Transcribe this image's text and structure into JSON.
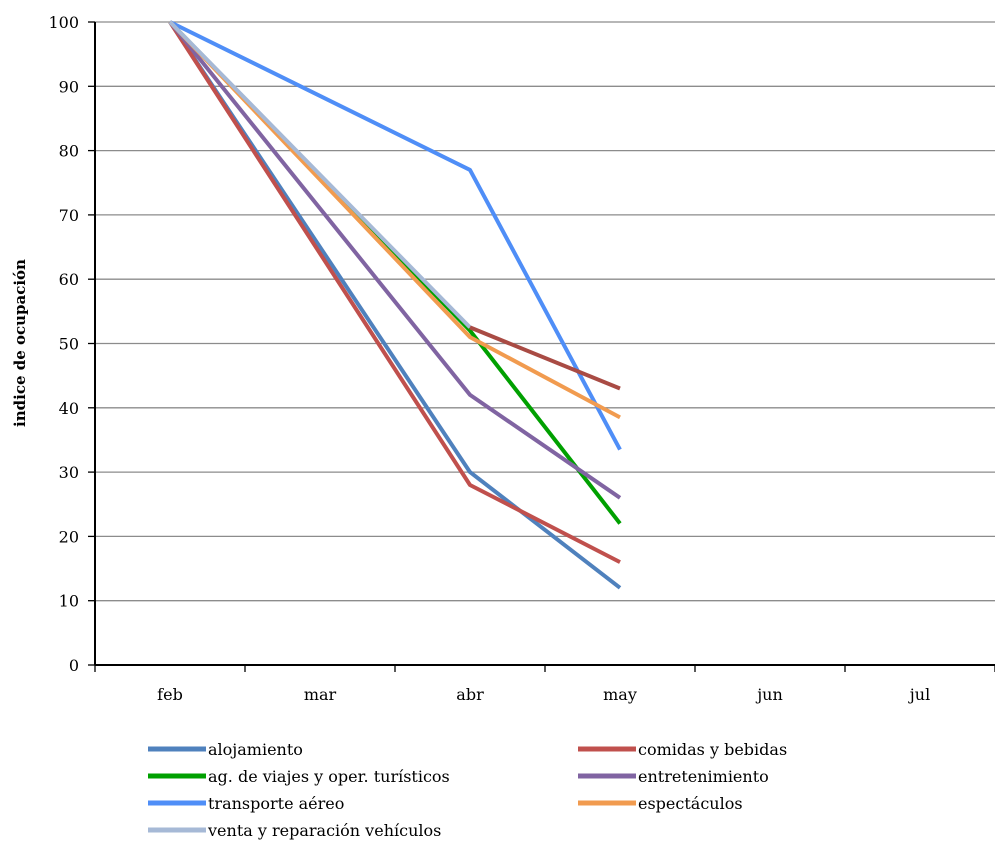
{
  "chart_data": {
    "type": "line",
    "title": "",
    "xlabel": "",
    "ylabel": "indice de ocupación",
    "categories": [
      "feb",
      "mar",
      "abr",
      "may",
      "jun",
      "jul"
    ],
    "ylim": [
      0,
      100
    ],
    "yticks": [
      "0",
      "10",
      "20",
      "30",
      "40",
      "50",
      "60",
      "70",
      "80",
      "90",
      "100"
    ],
    "grid": true,
    "legend_position": "bottom",
    "series": [
      {
        "name": "alojamiento",
        "color": "#4f81bd",
        "values": [
          100,
          null,
          30,
          12,
          null,
          null
        ]
      },
      {
        "name": "comidas y bebidas",
        "color": "#c0504d",
        "values": [
          100,
          null,
          28,
          16,
          null,
          null
        ]
      },
      {
        "name": "ag. de viajes y oper. turísticos",
        "color": "#00a000",
        "values": [
          100,
          null,
          52,
          22,
          null,
          null
        ]
      },
      {
        "name": "entretenimiento",
        "color": "#8064a2",
        "values": [
          100,
          null,
          42,
          26,
          null,
          null
        ]
      },
      {
        "name": "transporte aéreo",
        "color": "#4f8ef7",
        "values": [
          100,
          null,
          77,
          33.5,
          null,
          null
        ]
      },
      {
        "name": "espectáculos",
        "color": "#f19b4f",
        "values": [
          100,
          null,
          51,
          38.5,
          null,
          null
        ]
      },
      {
        "name": "venta y reparación vehículos",
        "color": "#a6b9d6",
        "values": [
          100,
          null,
          52.5,
          null,
          null,
          null
        ]
      },
      {
        "name": "",
        "color": "#a94b44",
        "values": [
          null,
          null,
          52.5,
          43,
          null,
          null
        ]
      }
    ]
  }
}
